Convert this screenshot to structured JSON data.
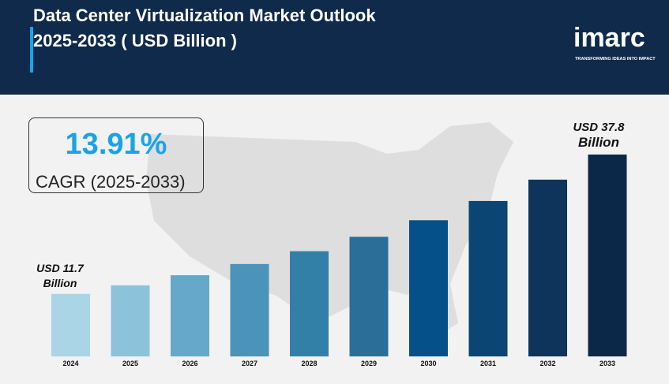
{
  "header": {
    "title_line1": "Data Center Virtualization Market Outlook",
    "title_line2": "2025-2033 ( USD Billion )"
  },
  "logo": {
    "word": "imarc",
    "tagline": "TRANSFORMING IDEAS INTO IMPACT"
  },
  "cagr": {
    "value": "13.91%",
    "label": "CAGR (2025-2033)"
  },
  "annotations": {
    "start_line1": "USD 11.7",
    "start_line2": "Billion",
    "end_line1": "USD 37.8",
    "end_line2": "Billion"
  },
  "colors": {
    "header_bg": "#0f2a4a",
    "accent": "#1aa3e8",
    "bar_colors": [
      "#a9d5e6",
      "#8cc3da",
      "#66a8c9",
      "#4b93b8",
      "#3280a8",
      "#2b6f99",
      "#06508a",
      "#0a4574",
      "#0e345c",
      "#0b2848"
    ]
  },
  "chart_data": {
    "type": "bar",
    "title": "Data Center Virtualization Market Outlook 2025-2033 ( USD Billion )",
    "categories": [
      "2024",
      "2025",
      "2026",
      "2027",
      "2028",
      "2029",
      "2030",
      "2031",
      "2032",
      "2033"
    ],
    "values": [
      11.7,
      13.3,
      15.2,
      17.3,
      19.7,
      22.4,
      25.5,
      29.1,
      33.1,
      37.8
    ],
    "xlabel": "",
    "ylabel": "",
    "ylim": [
      0,
      37.8
    ],
    "grid": false,
    "legend": "none"
  }
}
